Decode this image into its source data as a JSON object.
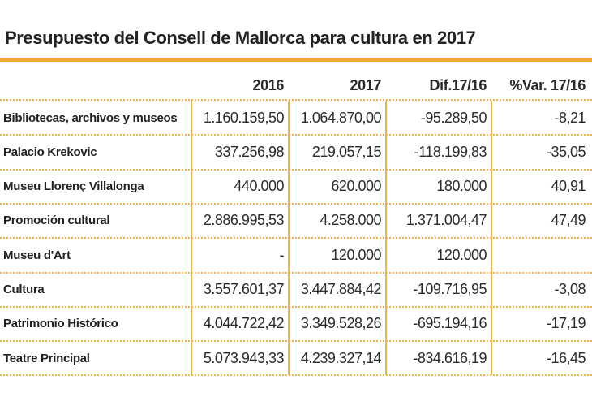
{
  "title": "Presupuesto del Consell de Mallorca para cultura en 2017",
  "colors": {
    "accent": "#f3a833",
    "text": "#2b2b2b"
  },
  "table": {
    "headers": [
      "",
      "2016",
      "2017",
      "Dif.17/16",
      "%Var. 17/16"
    ],
    "rows": [
      {
        "label": "Bibliotecas, archivos y museos",
        "y2016": "1.160.159,50",
        "y2017": "1.064.870,00",
        "dif": "-95.289,50",
        "var": "-8,21"
      },
      {
        "label": "Palacio Krekovic",
        "y2016": "337.256,98",
        "y2017": "219.057,15",
        "dif": "-118.199,83",
        "var": "-35,05"
      },
      {
        "label": "Museu Llorenç Villalonga",
        "y2016": "440.000",
        "y2017": "620.000",
        "dif": "180.000",
        "var": "40,91"
      },
      {
        "label": "Promoción cultural",
        "y2016": "2.886.995,53",
        "y2017": "4.258.000",
        "dif": "1.371.004,47",
        "var": "47,49"
      },
      {
        "label": "Museu d'Art",
        "y2016": "-",
        "y2017": "120.000",
        "dif": "120.000",
        "var": ""
      },
      {
        "label": "Cultura",
        "y2016": "3.557.601,37",
        "y2017": "3.447.884,42",
        "dif": "-109.716,95",
        "var": "-3,08"
      },
      {
        "label": "Patrimonio Histórico",
        "y2016": "4.044.722,42",
        "y2017": "3.349.528,26",
        "dif": "-695.194,16",
        "var": "-17,19"
      },
      {
        "label": "Teatre Principal",
        "y2016": "5.073.943,33",
        "y2017": "4.239.327,14",
        "dif": "-834.616,19",
        "var": "-16,45"
      }
    ]
  }
}
